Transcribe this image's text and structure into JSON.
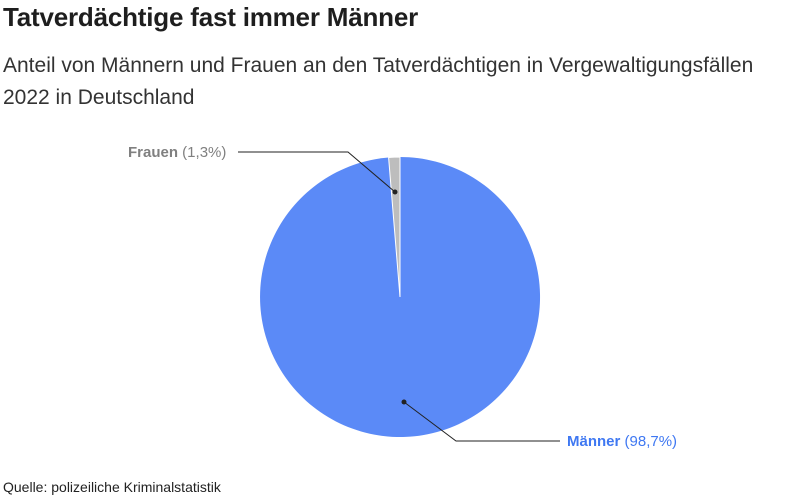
{
  "header": {
    "title": "Tatverdächtige fast immer Männer",
    "subtitle": "Anteil von Männern und Frauen an den Tatverdächtigen in Vergewaltigungsfällen 2022 in Deutschland"
  },
  "footer": {
    "source": "Quelle: polizeiliche Kriminalstatistik"
  },
  "chart_data": {
    "type": "pie",
    "title": "Tatverdächtige fast immer Männer",
    "subtitle": "Anteil von Männern und Frauen an den Tatverdächtigen in Vergewaltigungsfällen 2022 in Deutschland",
    "slices": [
      {
        "name": "Männer",
        "value": 98.7,
        "value_label": "(98,7%)",
        "color": "#5b8af7",
        "label_color": "#3f78f2"
      },
      {
        "name": "Frauen",
        "value": 1.3,
        "value_label": "(1,3%)",
        "color": "#bdbdbd",
        "label_color": "#808080"
      }
    ]
  }
}
